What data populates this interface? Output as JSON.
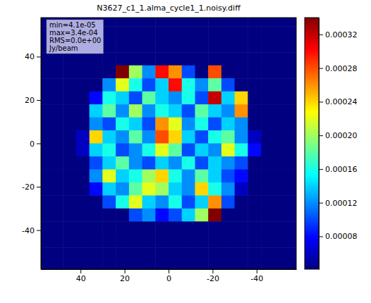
{
  "chart_data": {
    "type": "heatmap",
    "title": "N3627_c1_1.alma_cycle1_1.noisy.diff",
    "annotations": [
      "min=4.1e-05",
      "max=3.4e-04",
      "RMS=0.0e+00",
      "Jy/beam"
    ],
    "x": [
      57,
      51,
      45,
      39,
      33,
      27,
      21,
      15,
      9,
      3,
      -3,
      -9,
      -15,
      -21,
      -27,
      -33,
      -39,
      -45,
      -51,
      -57
    ],
    "y": [
      57,
      51,
      45,
      39,
      33,
      27,
      21,
      15,
      9,
      3,
      -3,
      -9,
      -15,
      -21,
      -27,
      -33,
      -39,
      -45,
      -51,
      -57
    ],
    "cells": [
      [
        4.1e-05,
        4.1e-05,
        4.1e-05,
        4.1e-05,
        4.1e-05,
        4.1e-05,
        4.1e-05,
        4.1e-05,
        4.1e-05,
        4.1e-05,
        4.1e-05,
        4.1e-05,
        4.1e-05,
        4.1e-05,
        4.1e-05,
        4.1e-05,
        4.1e-05,
        4.1e-05,
        4.1e-05,
        4.1e-05
      ],
      [
        4.1e-05,
        4.1e-05,
        4.1e-05,
        4.1e-05,
        4.1e-05,
        4.1e-05,
        4.1e-05,
        4.1e-05,
        4.1e-05,
        4.1e-05,
        4.1e-05,
        4.1e-05,
        4.1e-05,
        4.1e-05,
        4.1e-05,
        4.1e-05,
        4.1e-05,
        4.1e-05,
        4.1e-05,
        4.1e-05
      ],
      [
        4.1e-05,
        4.1e-05,
        4.1e-05,
        4.1e-05,
        4.1e-05,
        4.1e-05,
        4.1e-05,
        4.1e-05,
        4.1e-05,
        4.1e-05,
        4.1e-05,
        4.1e-05,
        4.1e-05,
        4.1e-05,
        4.1e-05,
        4.1e-05,
        4.1e-05,
        4.1e-05,
        4.1e-05,
        4.1e-05
      ],
      [
        4.1e-05,
        4.1e-05,
        4.1e-05,
        4.1e-05,
        4.1e-05,
        4.1e-05,
        4.1e-05,
        4.1e-05,
        4.1e-05,
        4.1e-05,
        4.1e-05,
        4.1e-05,
        4.1e-05,
        4.1e-05,
        4.1e-05,
        4.1e-05,
        4.1e-05,
        4.1e-05,
        4.1e-05,
        4.1e-05
      ],
      [
        4.1e-05,
        4.1e-05,
        4.1e-05,
        4.1e-05,
        4.1e-05,
        4.1e-05,
        0.00034,
        0.0002,
        0.00012,
        0.0003,
        0.00026,
        0.0001,
        4.1e-05,
        0.00028,
        4.1e-05,
        4.1e-05,
        4.1e-05,
        4.1e-05,
        4.1e-05,
        4.1e-05
      ],
      [
        4.1e-05,
        4.1e-05,
        4.1e-05,
        4.1e-05,
        4.1e-05,
        0.00012,
        0.00022,
        0.00016,
        0.0001,
        0.00014,
        0.0003,
        0.00016,
        0.00012,
        0.00018,
        0.0001,
        4.1e-05,
        4.1e-05,
        4.1e-05,
        4.1e-05,
        4.1e-05
      ],
      [
        4.1e-05,
        4.1e-05,
        4.1e-05,
        4.1e-05,
        8e-05,
        0.00016,
        0.00014,
        0.0001,
        0.00018,
        0.00014,
        0.00012,
        0.00016,
        0.0001,
        0.00032,
        0.00014,
        0.00024,
        4.1e-05,
        4.1e-05,
        4.1e-05,
        4.1e-05
      ],
      [
        4.1e-05,
        4.1e-05,
        4.1e-05,
        4.1e-05,
        0.00014,
        0.00018,
        0.00012,
        0.0002,
        0.00012,
        0.00016,
        0.00014,
        0.0001,
        0.00018,
        0.00014,
        0.00012,
        0.00026,
        4.1e-05,
        4.1e-05,
        4.1e-05,
        4.1e-05
      ],
      [
        4.1e-05,
        4.1e-05,
        4.1e-05,
        4.1e-05,
        0.00012,
        0.0001,
        0.00016,
        0.00014,
        0.0001,
        0.00026,
        0.00022,
        0.00012,
        0.00016,
        0.0001,
        0.00014,
        0.00012,
        4.1e-05,
        4.1e-05,
        4.1e-05,
        4.1e-05
      ],
      [
        4.1e-05,
        4.1e-05,
        4.1e-05,
        6e-05,
        0.00024,
        0.00014,
        0.00012,
        0.00018,
        0.00012,
        0.00028,
        0.00024,
        0.00014,
        0.0001,
        0.00016,
        0.00018,
        0.00012,
        6e-05,
        4.1e-05,
        4.1e-05,
        4.1e-05
      ],
      [
        4.1e-05,
        4.1e-05,
        4.1e-05,
        6e-05,
        0.00014,
        0.00016,
        0.0001,
        0.00012,
        0.00016,
        0.00022,
        0.00018,
        0.0001,
        0.00014,
        0.00012,
        0.00022,
        0.00016,
        8e-05,
        4.1e-05,
        4.1e-05,
        4.1e-05
      ],
      [
        4.1e-05,
        4.1e-05,
        4.1e-05,
        4.1e-05,
        0.0001,
        0.00014,
        0.00018,
        0.00012,
        0.0001,
        0.00014,
        0.00012,
        0.00016,
        0.0001,
        0.00014,
        0.00012,
        0.0001,
        4.1e-05,
        4.1e-05,
        4.1e-05,
        4.1e-05
      ],
      [
        4.1e-05,
        4.1e-05,
        4.1e-05,
        4.1e-05,
        0.00012,
        0.00022,
        0.00014,
        0.00016,
        0.0002,
        0.00024,
        0.00016,
        0.00012,
        0.00018,
        0.00014,
        0.0001,
        8e-05,
        4.1e-05,
        4.1e-05,
        4.1e-05,
        4.1e-05
      ],
      [
        4.1e-05,
        4.1e-05,
        4.1e-05,
        4.1e-05,
        8e-05,
        0.00014,
        0.00012,
        0.00018,
        0.00022,
        0.0002,
        0.00014,
        0.00012,
        0.00024,
        0.00016,
        0.00012,
        6e-05,
        4.1e-05,
        4.1e-05,
        4.1e-05,
        4.1e-05
      ],
      [
        4.1e-05,
        4.1e-05,
        4.1e-05,
        4.1e-05,
        4.1e-05,
        0.0001,
        0.00016,
        0.00022,
        0.00014,
        0.00012,
        0.00016,
        0.0001,
        0.00014,
        0.00026,
        0.0001,
        4.1e-05,
        4.1e-05,
        4.1e-05,
        4.1e-05,
        4.1e-05
      ],
      [
        4.1e-05,
        4.1e-05,
        4.1e-05,
        4.1e-05,
        4.1e-05,
        4.1e-05,
        4.1e-05,
        0.0001,
        0.00012,
        8e-05,
        0.0001,
        0.00014,
        0.0002,
        0.00034,
        4.1e-05,
        4.1e-05,
        4.1e-05,
        4.1e-05,
        4.1e-05,
        4.1e-05
      ],
      [
        4.1e-05,
        4.1e-05,
        4.1e-05,
        4.1e-05,
        4.1e-05,
        4.1e-05,
        4.1e-05,
        4.1e-05,
        4.1e-05,
        4.1e-05,
        4.1e-05,
        4.1e-05,
        4.1e-05,
        4.1e-05,
        4.1e-05,
        4.1e-05,
        4.1e-05,
        4.1e-05,
        4.1e-05,
        4.1e-05
      ],
      [
        4.1e-05,
        4.1e-05,
        4.1e-05,
        4.1e-05,
        4.1e-05,
        4.1e-05,
        4.1e-05,
        4.1e-05,
        4.1e-05,
        4.1e-05,
        4.1e-05,
        4.1e-05,
        4.1e-05,
        4.1e-05,
        4.1e-05,
        4.1e-05,
        4.1e-05,
        4.1e-05,
        4.1e-05,
        4.1e-05
      ],
      [
        4.1e-05,
        4.1e-05,
        4.1e-05,
        4.1e-05,
        4.1e-05,
        4.1e-05,
        4.1e-05,
        4.1e-05,
        4.1e-05,
        4.1e-05,
        4.1e-05,
        4.1e-05,
        4.1e-05,
        4.1e-05,
        4.1e-05,
        4.1e-05,
        4.1e-05,
        4.1e-05,
        4.1e-05,
        4.1e-05
      ],
      [
        4.1e-05,
        4.1e-05,
        4.1e-05,
        4.1e-05,
        4.1e-05,
        4.1e-05,
        4.1e-05,
        4.1e-05,
        4.1e-05,
        4.1e-05,
        4.1e-05,
        4.1e-05,
        4.1e-05,
        4.1e-05,
        4.1e-05,
        4.1e-05,
        4.1e-05,
        4.1e-05,
        4.1e-05,
        4.1e-05
      ]
    ],
    "xlim": [
      58,
      -58
    ],
    "ylim": [
      -58,
      58
    ],
    "xticks": [
      40,
      20,
      0,
      -20,
      -40
    ],
    "yticks": [
      -40,
      -20,
      0,
      20,
      40
    ],
    "colorbar": {
      "range": [
        4.1e-05,
        0.00034
      ],
      "ticks": [
        8e-05,
        0.00012,
        0.00016,
        {
          "value": 0.0002,
          "label": "0.00020"
        },
        0.00024,
        0.00028,
        0.00032
      ]
    }
  }
}
